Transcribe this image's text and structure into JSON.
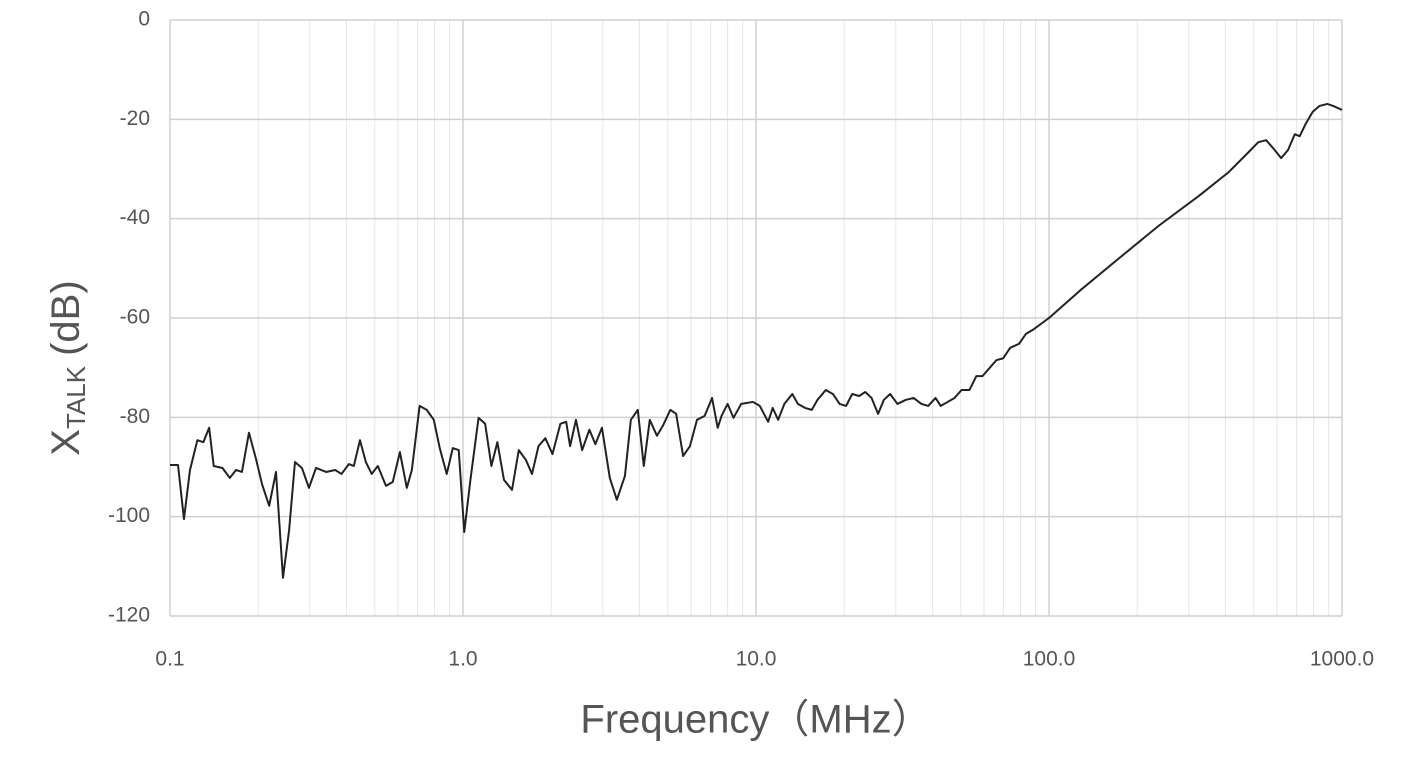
{
  "chart_data": {
    "type": "line",
    "ylabel": "X",
    "ylabel_subscript": "TALK",
    "ylabel_suffix": "(dB)",
    "xlabel": "Frequency（MHz）",
    "xscale": "log",
    "xlim": [
      0.1,
      1000
    ],
    "ylim": [
      -120,
      0
    ],
    "xticks": [
      0.1,
      {
        "value": 1,
        "label": "1.0"
      },
      {
        "value": 10,
        "label": "10.0"
      },
      {
        "value": 100,
        "label": "100.0"
      },
      {
        "value": 1000,
        "label": "1000.0"
      }
    ],
    "xminor_ticks": [
      0.2,
      0.3,
      0.4,
      0.5,
      0.6,
      0.7,
      0.8,
      0.9,
      2,
      3,
      4,
      5,
      6,
      7,
      8,
      9,
      20,
      30,
      40,
      50,
      60,
      70,
      80,
      90,
      200,
      300,
      400,
      500,
      600,
      700,
      800,
      900
    ],
    "yticks": [
      0,
      -20,
      -40,
      -60,
      -80,
      -100,
      -120
    ],
    "grid": true,
    "series": [
      {
        "color": "#222222",
        "x": [
          0.1,
          0.1065,
          0.1116,
          0.117,
          0.124,
          0.13,
          0.136,
          0.141,
          0.151,
          0.16,
          0.168,
          0.176,
          0.186,
          0.197,
          0.206,
          0.218,
          0.23,
          0.243,
          0.255,
          0.267,
          0.282,
          0.298,
          0.315,
          0.341,
          0.366,
          0.385,
          0.408,
          0.424,
          0.445,
          0.466,
          0.488,
          0.512,
          0.546,
          0.576,
          0.609,
          0.643,
          0.669,
          0.711,
          0.752,
          0.795,
          0.833,
          0.88,
          0.923,
          0.967,
          1.01,
          1.06,
          1.13,
          1.19,
          1.25,
          1.31,
          1.38,
          1.47,
          1.55,
          1.64,
          1.72,
          1.81,
          1.91,
          2.02,
          2.15,
          2.25,
          2.32,
          2.43,
          2.55,
          2.7,
          2.83,
          2.98,
          3.17,
          3.35,
          3.57,
          3.74,
          3.95,
          4.14,
          4.34,
          4.59,
          4.81,
          5.1,
          5.34,
          5.64,
          5.95,
          6.29,
          6.68,
          7.08,
          7.4,
          7.63,
          8.0,
          8.38,
          8.9,
          9.77,
          10.3,
          11.0,
          11.4,
          11.9,
          12.5,
          13.3,
          13.9,
          14.7,
          15.5,
          16.2,
          17.3,
          18.3,
          19.3,
          20.3,
          21.3,
          22.5,
          23.6,
          24.8,
          26.1,
          27.3,
          28.7,
          30.4,
          32.4,
          34.5,
          36.7,
          38.7,
          41.0,
          42.7,
          45.1,
          47.6,
          50.3,
          53.5,
          56.5,
          59.3,
          62.6,
          66.1,
          69.8,
          73.7,
          79.0,
          83.4,
          88.0,
          100,
          128,
          174,
          236,
          325,
          411,
          480,
          518,
          551,
          582,
          620,
          654,
          690,
          717,
          752,
          794,
          838,
          891,
          933,
          1000
        ],
        "values": [
          -89.6,
          -89.6,
          -100.5,
          -90.6,
          -84.6,
          -85,
          -82.1,
          -89.8,
          -90.2,
          -92.2,
          -90.6,
          -91,
          -83.1,
          -88.6,
          -93.4,
          -97.8,
          -91,
          -112.3,
          -102.7,
          -89,
          -90.2,
          -94.2,
          -90.2,
          -91,
          -90.6,
          -91.4,
          -89.4,
          -89.8,
          -84.6,
          -89,
          -91.4,
          -89.8,
          -93.8,
          -93,
          -87,
          -94.2,
          -90.6,
          -77.7,
          -78.5,
          -80.5,
          -86.2,
          -91.4,
          -86.2,
          -86.6,
          -103.1,
          -92.6,
          -80.1,
          -81.3,
          -89.8,
          -85,
          -92.6,
          -94.6,
          -86.6,
          -88.6,
          -91.4,
          -85.8,
          -84.2,
          -87.4,
          -81.3,
          -80.9,
          -85.8,
          -80.5,
          -86.6,
          -82.5,
          -85.4,
          -82.1,
          -92.2,
          -96.6,
          -91.8,
          -80.5,
          -78.5,
          -89.8,
          -80.5,
          -83.7,
          -81.7,
          -78.5,
          -79.3,
          -87.8,
          -85.8,
          -80.5,
          -79.7,
          -76.1,
          -82.1,
          -79.7,
          -77.3,
          -80.1,
          -77.3,
          -76.9,
          -77.7,
          -80.9,
          -78.1,
          -80.5,
          -77.3,
          -75.3,
          -77.3,
          -78.1,
          -78.5,
          -76.5,
          -74.5,
          -75.3,
          -77.3,
          -77.7,
          -75.3,
          -75.7,
          -74.9,
          -76.1,
          -79.3,
          -76.5,
          -75.3,
          -77.3,
          -76.5,
          -76.1,
          -77.3,
          -77.7,
          -76.1,
          -77.7,
          -76.9,
          -76.1,
          -74.5,
          -74.5,
          -71.7,
          -71.7,
          -70.1,
          -68.5,
          -68.1,
          -66,
          -65.2,
          -63.2,
          -62.4,
          -60,
          -54.4,
          -47.9,
          -41.5,
          -35.4,
          -30.6,
          -26.6,
          -24.6,
          -24.2,
          -25.8,
          -27.8,
          -26.2,
          -23,
          -23.4,
          -20.9,
          -18.5,
          -17.3,
          -16.9,
          -17.3,
          -18.1
        ]
      }
    ]
  }
}
